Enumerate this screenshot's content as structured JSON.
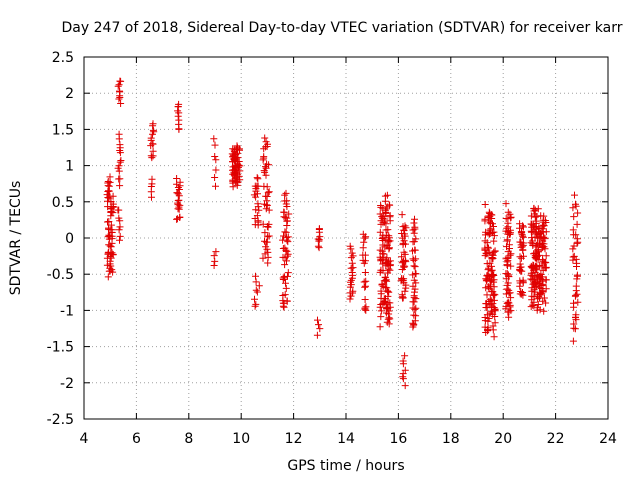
{
  "chart_data": {
    "type": "scatter",
    "title": "Day 247 of 2018, Sidereal Day-to-day VTEC variation (SDTVAR) for receiver karr",
    "xlabel": "GPS time / hours",
    "ylabel": "SDTVAR / TECUs",
    "xlim": [
      4,
      24
    ],
    "ylim": [
      -2.5,
      2.5
    ],
    "xticks": [
      4,
      6,
      8,
      10,
      12,
      14,
      16,
      18,
      20,
      22,
      24
    ],
    "yticks": [
      2.5,
      2,
      1.5,
      1,
      0.5,
      0,
      -0.5,
      -1,
      -1.5,
      -2,
      -2.5
    ],
    "xtick_labels": [
      "4",
      "6",
      "8",
      "10",
      "12",
      "14",
      "16",
      "18",
      "20",
      "22",
      "24"
    ],
    "ytick_labels": [
      "2.5",
      "2",
      "1.5",
      "1",
      "0.5",
      "0",
      "-0.5",
      "-1",
      "-1.5",
      "-2",
      "-2.5"
    ],
    "grid": true,
    "marker": "+",
    "color": "#e00000",
    "clusters": [
      {
        "x_center": 5.0,
        "x_spread": 0.12,
        "y_min": -0.6,
        "y_max": 0.9,
        "n": 70
      },
      {
        "x_center": 5.35,
        "x_spread": 0.06,
        "y_min": -0.05,
        "y_max": 0.45,
        "n": 8
      },
      {
        "x_center": 5.35,
        "x_spread": 0.06,
        "y_min": 0.7,
        "y_max": 1.45,
        "n": 14
      },
      {
        "x_center": 5.35,
        "x_spread": 0.06,
        "y_min": 1.85,
        "y_max": 2.2,
        "n": 10
      },
      {
        "x_center": 6.6,
        "x_spread": 0.05,
        "y_min": 0.55,
        "y_max": 0.85,
        "n": 5
      },
      {
        "x_center": 6.6,
        "x_spread": 0.06,
        "y_min": 1.05,
        "y_max": 1.65,
        "n": 14
      },
      {
        "x_center": 7.6,
        "x_spread": 0.07,
        "y_min": 0.2,
        "y_max": 0.85,
        "n": 22
      },
      {
        "x_center": 7.6,
        "x_spread": 0.05,
        "y_min": 1.45,
        "y_max": 1.9,
        "n": 10
      },
      {
        "x_center": 9.0,
        "x_spread": 0.05,
        "y_min": -0.4,
        "y_max": -0.15,
        "n": 4
      },
      {
        "x_center": 9.0,
        "x_spread": 0.05,
        "y_min": 0.65,
        "y_max": 1.4,
        "n": 7
      },
      {
        "x_center": 9.8,
        "x_spread": 0.15,
        "y_min": 0.7,
        "y_max": 1.3,
        "n": 70
      },
      {
        "x_center": 10.6,
        "x_spread": 0.1,
        "y_min": -1.0,
        "y_max": -0.5,
        "n": 8
      },
      {
        "x_center": 10.6,
        "x_spread": 0.1,
        "y_min": 0.1,
        "y_max": 0.9,
        "n": 20
      },
      {
        "x_center": 10.95,
        "x_spread": 0.12,
        "y_min": -0.5,
        "y_max": 1.55,
        "n": 45
      },
      {
        "x_center": 11.7,
        "x_spread": 0.12,
        "y_min": -1.1,
        "y_max": 0.75,
        "n": 50
      },
      {
        "x_center": 12.95,
        "x_spread": 0.06,
        "y_min": -0.15,
        "y_max": 0.15,
        "n": 9
      },
      {
        "x_center": 12.95,
        "x_spread": 0.06,
        "y_min": -1.35,
        "y_max": -1.1,
        "n": 4
      },
      {
        "x_center": 14.2,
        "x_spread": 0.07,
        "y_min": -0.95,
        "y_max": -0.1,
        "n": 20
      },
      {
        "x_center": 14.7,
        "x_spread": 0.06,
        "y_min": -1.15,
        "y_max": 0.2,
        "n": 20
      },
      {
        "x_center": 15.5,
        "x_spread": 0.2,
        "y_min": -1.3,
        "y_max": 0.65,
        "n": 120
      },
      {
        "x_center": 16.2,
        "x_spread": 0.07,
        "y_min": -2.05,
        "y_max": -1.6,
        "n": 8
      },
      {
        "x_center": 16.2,
        "x_spread": 0.1,
        "y_min": -1.0,
        "y_max": 0.35,
        "n": 40
      },
      {
        "x_center": 16.6,
        "x_spread": 0.07,
        "y_min": -1.4,
        "y_max": 0.3,
        "n": 40
      },
      {
        "x_center": 19.5,
        "x_spread": 0.2,
        "y_min": -1.45,
        "y_max": 0.5,
        "n": 120
      },
      {
        "x_center": 20.2,
        "x_spread": 0.1,
        "y_min": -1.2,
        "y_max": 0.5,
        "n": 60
      },
      {
        "x_center": 20.7,
        "x_spread": 0.08,
        "y_min": -0.9,
        "y_max": 0.35,
        "n": 40
      },
      {
        "x_center": 21.35,
        "x_spread": 0.3,
        "y_min": -1.05,
        "y_max": 0.45,
        "n": 180
      },
      {
        "x_center": 22.75,
        "x_spread": 0.1,
        "y_min": -1.55,
        "y_max": 0.7,
        "n": 40
      }
    ]
  }
}
